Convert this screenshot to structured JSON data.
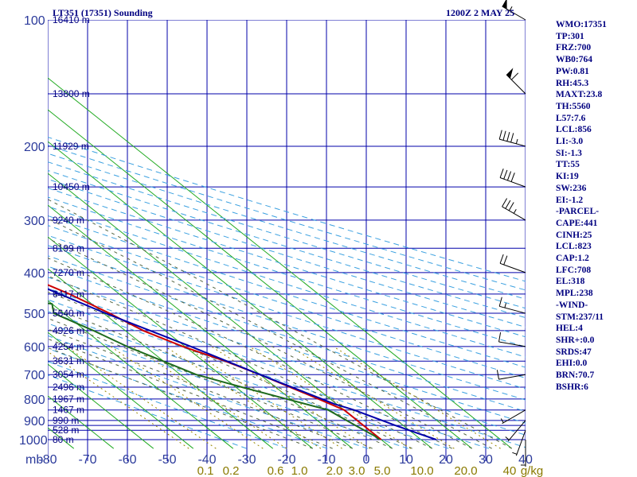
{
  "header": {
    "station": "LT351 (17351) Sounding",
    "time": "1200Z  2 MAY 25"
  },
  "stats": [
    "WMO:17351",
    "TP:301",
    "FRZ:700",
    "WB0:764",
    "PW:0.81",
    "RH:45.3",
    "MAXT:23.8",
    "TH:5560",
    "L57:7.6",
    "LCL:856",
    "LI:-3.0",
    "SI:-1.3",
    "TT:55",
    "KI:19",
    "SW:236",
    "EI:-1.2",
    "-PARCEL-",
    "CAPE:441",
    "CINH:25",
    "LCL:823",
    "CAP:1.2",
    "LFC:708",
    "EL:318",
    "MPL:238",
    "-WIND-",
    "STM:237/11",
    "HEL:4",
    "SHR+:0.0",
    "SRDS:47",
    "EHI:0.0",
    "BRN:70.7",
    "BSHR:6"
  ],
  "chart_data": {
    "type": "line",
    "title": "LT351 (17351) Sounding",
    "subtitle": "1200Z  2 MAY 25",
    "y_axis": {
      "unit": "mb",
      "ticks": [
        100,
        200,
        300,
        400,
        500,
        600,
        700,
        800,
        900,
        1000
      ],
      "scale": "log",
      "range": [
        100,
        1050
      ]
    },
    "x_axis": {
      "unit": "°C",
      "ticks": [
        -80,
        -70,
        -60,
        -50,
        -40,
        -30,
        -20,
        -10,
        0,
        10,
        20,
        30,
        40
      ],
      "range": [
        -80,
        40
      ],
      "skewed": true
    },
    "mixing_ratio_labels": {
      "unit": "g/kg",
      "values": [
        "0.1",
        "0.2",
        "0.6",
        "1.0",
        "2.0",
        "3.0",
        "5.0",
        "10.0",
        "20.0",
        "40"
      ]
    },
    "pressure_levels": [
      100,
      150,
      200,
      250,
      300,
      350,
      400,
      450,
      500,
      550,
      600,
      650,
      700,
      750,
      800,
      850,
      900,
      925,
      950,
      1000
    ],
    "heights": [
      {
        "p": 100,
        "label": "16410 m"
      },
      {
        "p": 150,
        "label": "13800 m"
      },
      {
        "p": 200,
        "label": "11929 m"
      },
      {
        "p": 250,
        "label": "10450 m"
      },
      {
        "p": 300,
        "label": "9240 m"
      },
      {
        "p": 350,
        "label": "8199 m"
      },
      {
        "p": 400,
        "label": "7270 m"
      },
      {
        "p": 450,
        "label": "6417 m"
      },
      {
        "p": 500,
        "label": "5640 m"
      },
      {
        "p": 550,
        "label": "4926 m"
      },
      {
        "p": 600,
        "label": "4254 m"
      },
      {
        "p": 650,
        "label": "3631 m"
      },
      {
        "p": 700,
        "label": "3054 m"
      },
      {
        "p": 750,
        "label": "2496 m"
      },
      {
        "p": 800,
        "label": "1967 m"
      },
      {
        "p": 850,
        "label": "1467 m"
      },
      {
        "p": 900,
        "label": "990 m"
      },
      {
        "p": 950,
        "label": "528 m"
      },
      {
        "p": 1000,
        "label": "80 m"
      }
    ],
    "series": [
      {
        "role": "temperature",
        "color": "#cc0000",
        "points": [
          [
            1000,
            10.0
          ],
          [
            925,
            10.0
          ],
          [
            850,
            10.0
          ],
          [
            800,
            7.0
          ],
          [
            700,
            0.0
          ],
          [
            650,
            -4.5
          ],
          [
            600,
            -10.5
          ],
          [
            550,
            -15.5
          ],
          [
            500,
            -18.5
          ],
          [
            450,
            -22.5
          ],
          [
            400,
            -28.5
          ],
          [
            350,
            -37.0
          ],
          [
            300,
            -45.5
          ],
          [
            250,
            -52.5
          ],
          [
            200,
            -61.0
          ],
          [
            150,
            -69.0
          ],
          [
            130,
            -72.5
          ],
          [
            100,
            -83.0
          ]
        ]
      },
      {
        "role": "dewpoint",
        "color": "#1e6b1e",
        "points": [
          [
            1000,
            9.5
          ],
          [
            980,
            9.5
          ],
          [
            925,
            8.0
          ],
          [
            850,
            6.0
          ],
          [
            800,
            -1.0
          ],
          [
            750,
            -8.5
          ],
          [
            700,
            -16.0
          ],
          [
            600,
            -24.5
          ],
          [
            550,
            -28.0
          ],
          [
            500,
            -32.5
          ],
          [
            475,
            -30.0
          ],
          [
            450,
            -44.0
          ],
          [
            420,
            -52.0
          ],
          [
            395,
            -49.0
          ],
          [
            380,
            -57.5
          ],
          [
            350,
            -61.0
          ],
          [
            300,
            -73.0
          ]
        ]
      },
      {
        "role": "parcel",
        "color": "#0000aa",
        "points": [
          [
            1000,
            23.8
          ],
          [
            925,
            18.0
          ],
          [
            850,
            12.5
          ],
          [
            823,
            9.5
          ],
          [
            700,
            0.0
          ],
          [
            600,
            -8.5
          ],
          [
            500,
            -19.5
          ],
          [
            400,
            -31.0
          ],
          [
            300,
            -45.5
          ],
          [
            250,
            -54.5
          ],
          [
            200,
            -65.0
          ],
          [
            150,
            -77.0
          ],
          [
            120,
            -86.0
          ]
        ]
      }
    ],
    "winds": [
      {
        "p": 100,
        "dir": 300,
        "spd": 55
      },
      {
        "p": 150,
        "dir": 315,
        "spd": 60
      },
      {
        "p": 200,
        "dir": 285,
        "spd": 45
      },
      {
        "p": 250,
        "dir": 290,
        "spd": 40
      },
      {
        "p": 300,
        "dir": 300,
        "spd": 35
      },
      {
        "p": 400,
        "dir": 290,
        "spd": 20
      },
      {
        "p": 500,
        "dir": 285,
        "spd": 15
      },
      {
        "p": 600,
        "dir": 280,
        "spd": 10
      },
      {
        "p": 700,
        "dir": 260,
        "spd": 10
      },
      {
        "p": 850,
        "dir": 240,
        "spd": 5
      },
      {
        "p": 900,
        "dir": 220,
        "spd": 5
      },
      {
        "p": 950,
        "dir": 200,
        "spd": 5
      },
      {
        "p": 1000,
        "dir": 180,
        "spd": 5
      }
    ]
  }
}
